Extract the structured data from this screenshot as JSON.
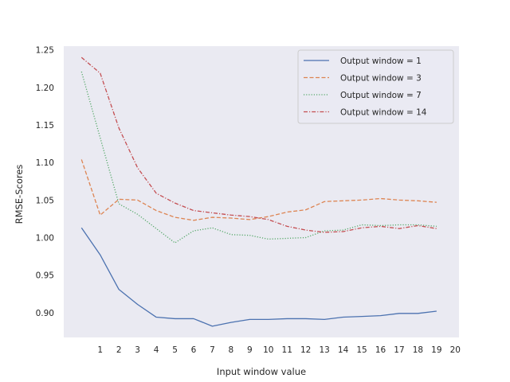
{
  "chart_data": {
    "type": "line",
    "title": "",
    "xlabel": "Input window value",
    "ylabel": "RMSE-Scores",
    "xlim": [
      -0.95,
      20.2
    ],
    "ylim": [
      0.867,
      1.255
    ],
    "xticks": [
      1,
      2,
      3,
      4,
      5,
      6,
      7,
      8,
      9,
      10,
      11,
      12,
      13,
      14,
      15,
      16,
      17,
      18,
      19,
      20
    ],
    "yticks": [
      "0.90",
      "0.95",
      "1.00",
      "1.05",
      "1.10",
      "1.15",
      "1.20",
      "1.25"
    ],
    "grid": false,
    "legend_position": "top-right",
    "x": [
      0,
      1,
      2,
      3,
      4,
      5,
      6,
      7,
      8,
      9,
      10,
      11,
      12,
      13,
      14,
      15,
      16,
      17,
      18,
      19
    ],
    "series": [
      {
        "name": "Output window = 1",
        "color": "#4c72b0",
        "dash": "solid",
        "values": [
          1.013,
          0.977,
          0.931,
          0.911,
          0.894,
          0.892,
          0.892,
          0.882,
          0.887,
          0.891,
          0.891,
          0.892,
          0.892,
          0.891,
          0.894,
          0.895,
          0.896,
          0.899,
          0.899,
          0.902
        ]
      },
      {
        "name": "Output window = 3",
        "color": "#dd8452",
        "dash": "dashed",
        "values": [
          1.104,
          1.03,
          1.051,
          1.05,
          1.036,
          1.027,
          1.023,
          1.027,
          1.026,
          1.024,
          1.028,
          1.034,
          1.037,
          1.048,
          1.049,
          1.05,
          1.052,
          1.05,
          1.049,
          1.047
        ]
      },
      {
        "name": "Output window = 7",
        "color": "#55a868",
        "dash": "dotted",
        "values": [
          1.221,
          1.133,
          1.045,
          1.031,
          1.012,
          0.993,
          1.009,
          1.013,
          1.004,
          1.003,
          0.998,
          0.999,
          1.0,
          1.009,
          1.01,
          1.017,
          1.016,
          1.017,
          1.017,
          1.015
        ]
      },
      {
        "name": "Output window = 14",
        "color": "#c44e52",
        "dash": "dashdot",
        "values": [
          1.24,
          1.219,
          1.146,
          1.093,
          1.059,
          1.046,
          1.036,
          1.033,
          1.03,
          1.028,
          1.024,
          1.015,
          1.01,
          1.007,
          1.008,
          1.013,
          1.015,
          1.012,
          1.016,
          1.012
        ]
      }
    ]
  }
}
